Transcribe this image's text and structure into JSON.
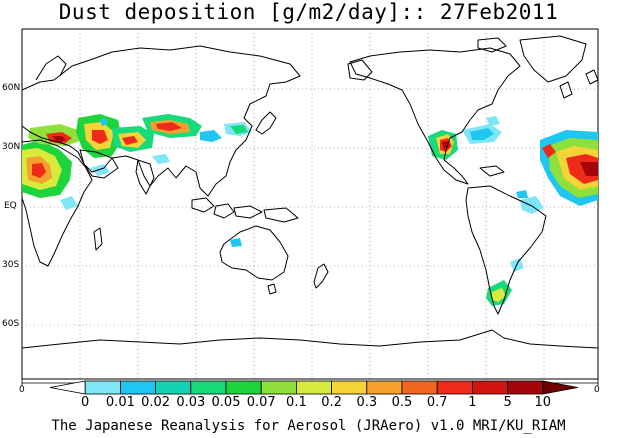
{
  "title": "Dust deposition [g/m2/day]:: 27Feb2011",
  "lat_labels": [
    "60N",
    "30N",
    "EQ",
    "30S",
    "60S"
  ],
  "lon_edge_labels": [
    "0",
    "0"
  ],
  "colorbar": {
    "labels": [
      "0",
      "0.01",
      "0.02",
      "0.03",
      "0.05",
      "0.07",
      "0.1",
      "0.2",
      "0.3",
      "0.5",
      "0.7",
      "1",
      "5",
      "10"
    ],
    "colors": [
      "#ffffff",
      "#7fe6f7",
      "#1ec6f0",
      "#15d2b4",
      "#17da7a",
      "#1ed43c",
      "#8fe03a",
      "#d8eb3c",
      "#f5d438",
      "#f5a12c",
      "#f2661f",
      "#ee2a18",
      "#d21410",
      "#a3060a",
      "#6e0000"
    ]
  },
  "credit": "The Japanese Reanalysis for Aerosol (JRAero) v1.0 MRI/KU_RIAM"
}
